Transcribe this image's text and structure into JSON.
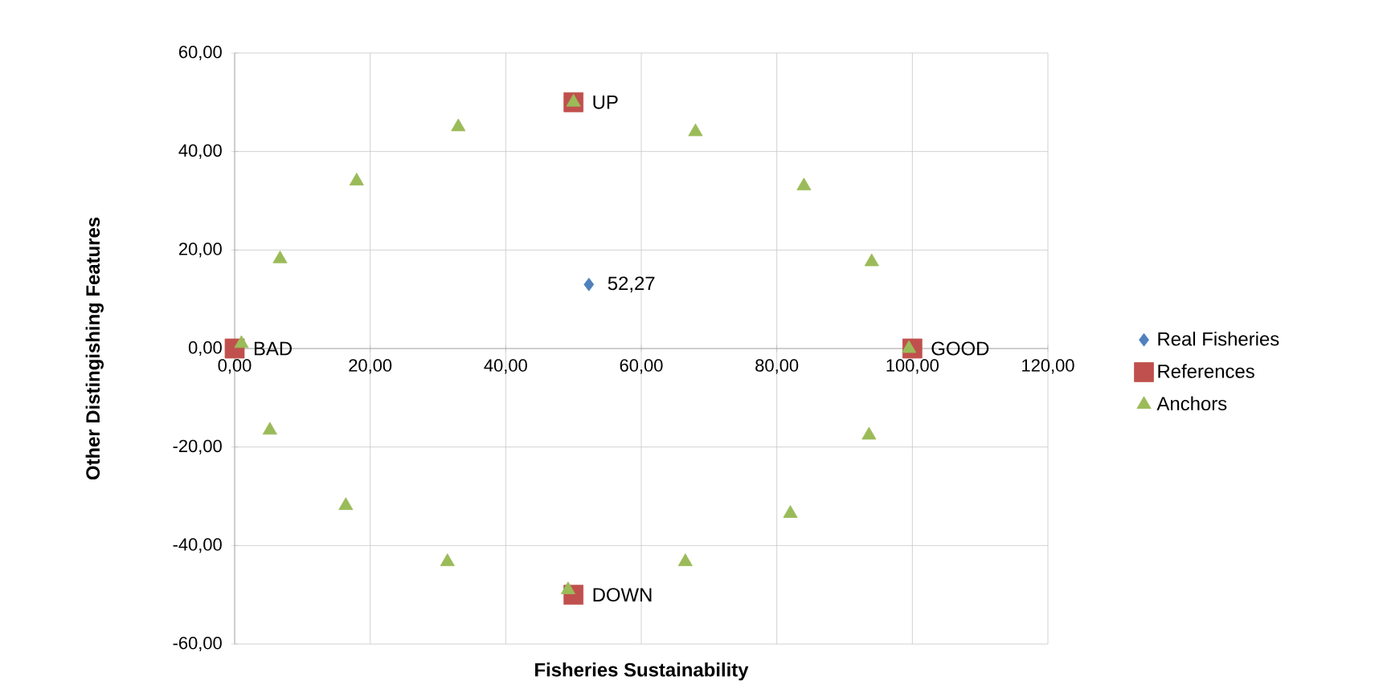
{
  "chart_data": {
    "type": "scatter",
    "xlabel": "Fisheries Sustainability",
    "ylabel": "Other Distingishing Features",
    "xlim": [
      0,
      120
    ],
    "ylim": [
      -60,
      60
    ],
    "xticks": [
      {
        "value": 0,
        "label": "0,00"
      },
      {
        "value": 20,
        "label": "20,00"
      },
      {
        "value": 40,
        "label": "40,00"
      },
      {
        "value": 60,
        "label": "60,00"
      },
      {
        "value": 80,
        "label": "80,00"
      },
      {
        "value": 100,
        "label": "100,00"
      },
      {
        "value": 120,
        "label": "120,00"
      }
    ],
    "yticks": [
      {
        "value": -60,
        "label": "-60,00"
      },
      {
        "value": -40,
        "label": "-40,00"
      },
      {
        "value": -20,
        "label": "-20,00"
      },
      {
        "value": 0,
        "label": "0,00"
      },
      {
        "value": 20,
        "label": "20,00"
      },
      {
        "value": 40,
        "label": "40,00"
      },
      {
        "value": 60,
        "label": "60,00"
      }
    ],
    "grid": true,
    "legend": "right",
    "series": [
      {
        "name": "Real Fisheries",
        "color": "#4f81bd",
        "marker": "diamond",
        "x": [
          52.27
        ],
        "values": [
          13
        ]
      },
      {
        "name": "References",
        "color": "#c0504d",
        "marker": "square",
        "x": [
          0,
          50,
          100,
          50
        ],
        "values": [
          0,
          50,
          0,
          -50
        ]
      },
      {
        "name": "Anchors",
        "color": "#9bbb59",
        "marker": "triangle",
        "x": [
          1,
          6.7,
          18,
          33,
          50,
          68,
          84,
          94,
          99.5,
          93.6,
          82,
          66.5,
          49.2,
          31.4,
          16.4,
          5.2
        ],
        "values": [
          1,
          18.2,
          34,
          45,
          50,
          44,
          33,
          17.6,
          0,
          -17.6,
          -33.5,
          -43.3,
          -49,
          -43.3,
          -31.9,
          -16.6
        ]
      }
    ],
    "annotations": [
      {
        "text": "52,27",
        "x": 52.27,
        "y": 13
      },
      {
        "text": "UP",
        "x": 50,
        "y": 50
      },
      {
        "text": "GOOD",
        "x": 100,
        "y": 0
      },
      {
        "text": "DOWN",
        "x": 50,
        "y": -50
      },
      {
        "text": "BAD",
        "x": 0,
        "y": 0
      }
    ]
  }
}
